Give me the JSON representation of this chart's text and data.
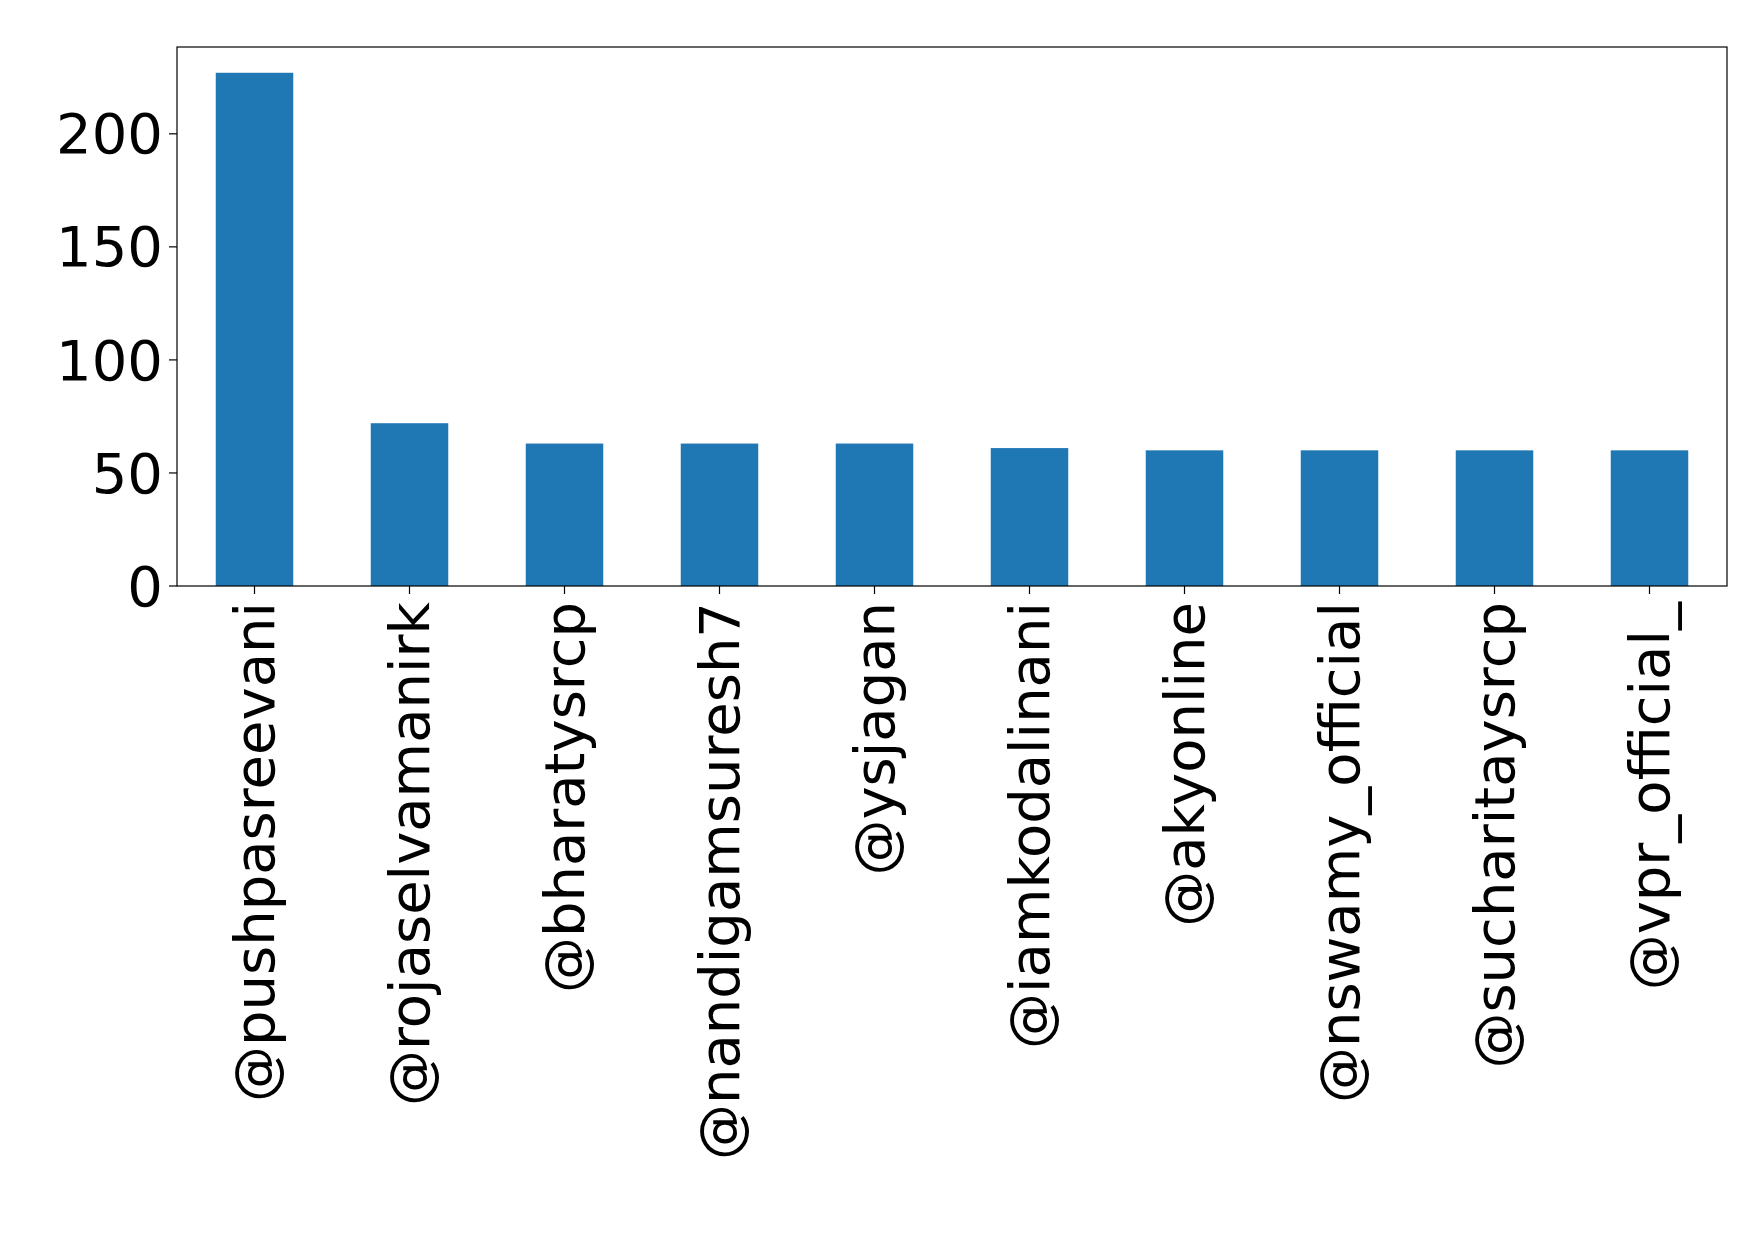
{
  "chart_data": {
    "type": "bar",
    "categories": [
      "@pushpasreevani",
      "@rojaselvamanirk",
      "@bharatysrcp",
      "@nandigamsuresh7",
      "@ysjagan",
      "@iamkodalinani",
      "@akyonline",
      "@nswamy_official",
      "@sucharitaysrcp",
      "@vpr_official_"
    ],
    "values": [
      227,
      72,
      63,
      63,
      63,
      61,
      60,
      60,
      60,
      60
    ],
    "color": "#1f77b4",
    "ylim": [
      0,
      238.4
    ],
    "yticks": [
      0,
      50,
      100,
      150,
      200
    ],
    "grid": false
  }
}
